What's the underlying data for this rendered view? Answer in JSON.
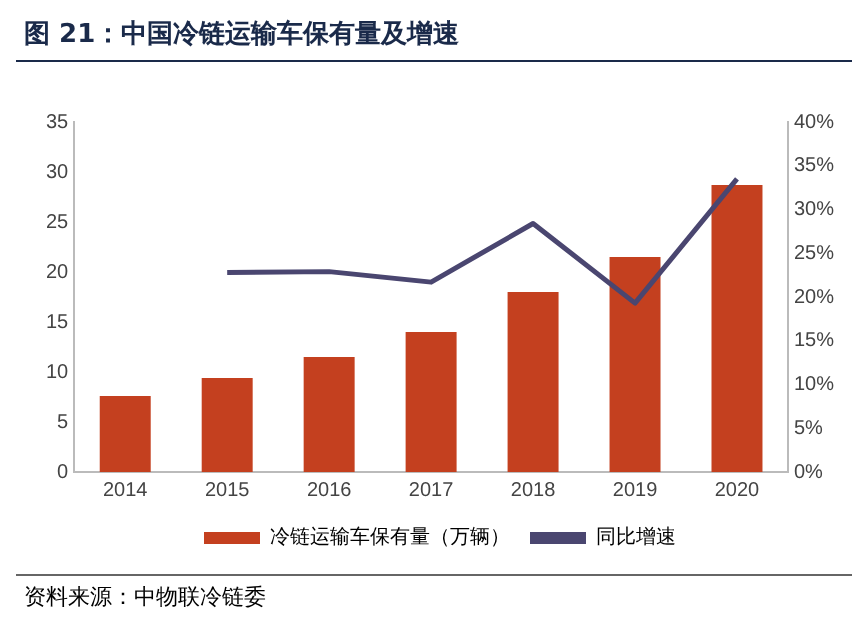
{
  "chart_data": {
    "type": "bar",
    "title": "图 21：中国冷链运输车保有量及增速",
    "categories": [
      "2014",
      "2015",
      "2016",
      "2017",
      "2018",
      "2019",
      "2020"
    ],
    "series": [
      {
        "name": "冷链运输车保有量（万辆）",
        "color": "#c4401f",
        "values": [
          7.6,
          9.4,
          11.5,
          14.0,
          18.0,
          21.5,
          28.7
        ]
      },
      {
        "name": "同比增速",
        "type": "line",
        "axis": "y2",
        "color": "#4a4670",
        "values": [
          null,
          22.8,
          22.9,
          21.7,
          28.4,
          19.3,
          33.5
        ]
      }
    ],
    "ylim": [
      0,
      35
    ],
    "yticks": [
      0,
      5,
      10,
      15,
      20,
      25,
      30,
      35
    ],
    "y2lim": [
      0,
      40
    ],
    "y2ticks": [
      {
        "value": 0,
        "label": "0%"
      },
      {
        "value": 5,
        "label": "5%"
      },
      {
        "value": 10,
        "label": "10%"
      },
      {
        "value": 15,
        "label": "15%"
      },
      {
        "value": 20,
        "label": "20%"
      },
      {
        "value": 25,
        "label": "25%"
      },
      {
        "value": 30,
        "label": "30%"
      },
      {
        "value": 35,
        "label": "35%"
      },
      {
        "value": 40,
        "label": "40%"
      }
    ],
    "grid": false,
    "legend": "bottom",
    "marker": "none",
    "annotations": [
      "资料来源：中物联冷链委"
    ]
  }
}
